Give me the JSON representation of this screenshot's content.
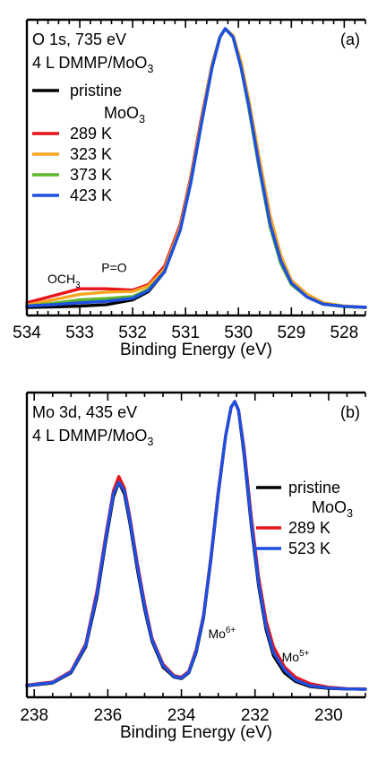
{
  "colors": {
    "pristine": "#000000",
    "k289": "#e8141c",
    "k323": "#f5a623",
    "k373": "#5cb82a",
    "k423": "#1e4fe0",
    "k523": "#1e4fe0"
  },
  "chart_data": [
    {
      "type": "line",
      "panel_id": "(a)",
      "title_line1": "O 1s, 735 eV",
      "title_line2": "4 L DMMP/MoO",
      "title_line2_sub": "3",
      "xlabel": "Binding Energy (eV)",
      "ylabel": "",
      "xlim": [
        534,
        527.6
      ],
      "ylim": [
        0,
        1
      ],
      "x_reversed": true,
      "xticks": [
        "534",
        "533",
        "532",
        "531",
        "530",
        "529",
        "528"
      ],
      "legend": [
        {
          "label": "pristine",
          "label2": "MoO",
          "label2_sub": "3",
          "color": "#000000"
        },
        {
          "label": "289 K",
          "color": "#e8141c"
        },
        {
          "label": "323 K",
          "color": "#f5a623"
        },
        {
          "label": "373 K",
          "color": "#5cb82a"
        },
        {
          "label": "423 K",
          "color": "#1e4fe0"
        }
      ],
      "annotations": [
        {
          "text": "OCH",
          "sub": "3",
          "x": 533.3,
          "y": 0.09
        },
        {
          "text": "P=O",
          "x": 532.35,
          "y": 0.13
        }
      ],
      "series": [
        {
          "name": "pristine",
          "color": "#000000",
          "x": [
            534,
            533.5,
            533,
            532.5,
            532,
            531.7,
            531.4,
            531.1,
            530.9,
            530.7,
            530.5,
            530.35,
            530.25,
            530.1,
            529.95,
            529.8,
            529.6,
            529.4,
            529.2,
            529,
            528.7,
            528.4,
            528,
            527.6
          ],
          "y": [
            0.003,
            0.005,
            0.008,
            0.013,
            0.03,
            0.06,
            0.13,
            0.29,
            0.46,
            0.67,
            0.87,
            0.97,
            1.0,
            0.97,
            0.87,
            0.72,
            0.5,
            0.3,
            0.17,
            0.09,
            0.04,
            0.015,
            0.006,
            0.003
          ]
        },
        {
          "name": "289 K",
          "color": "#e8141c",
          "x": [
            534,
            533.5,
            533,
            532.5,
            532,
            531.7,
            531.4,
            531.1,
            530.9,
            530.7,
            530.5,
            530.35,
            530.25,
            530.1,
            529.95,
            529.8,
            529.6,
            529.4,
            529.2,
            529,
            528.7,
            528.4,
            528,
            527.6
          ],
          "y": [
            0.02,
            0.045,
            0.07,
            0.07,
            0.065,
            0.085,
            0.15,
            0.3,
            0.47,
            0.68,
            0.87,
            0.97,
            1.0,
            0.97,
            0.87,
            0.72,
            0.5,
            0.3,
            0.17,
            0.09,
            0.04,
            0.016,
            0.007,
            0.004
          ]
        },
        {
          "name": "323 K",
          "color": "#f5a623",
          "x": [
            534,
            533.5,
            533,
            532.5,
            532,
            531.7,
            531.4,
            531.1,
            530.9,
            530.7,
            530.5,
            530.35,
            530.25,
            530.1,
            529.95,
            529.8,
            529.6,
            529.4,
            529.2,
            529,
            528.7,
            528.4,
            528,
            527.6
          ],
          "y": [
            0.012,
            0.03,
            0.05,
            0.058,
            0.06,
            0.08,
            0.14,
            0.29,
            0.46,
            0.67,
            0.87,
            0.97,
            1.0,
            0.975,
            0.88,
            0.74,
            0.53,
            0.33,
            0.19,
            0.1,
            0.05,
            0.02,
            0.008,
            0.004
          ]
        },
        {
          "name": "373 K",
          "color": "#5cb82a",
          "x": [
            534,
            533.5,
            533,
            532.5,
            532,
            531.7,
            531.4,
            531.1,
            530.9,
            530.7,
            530.5,
            530.35,
            530.25,
            530.1,
            529.95,
            529.8,
            529.6,
            529.4,
            529.2,
            529,
            528.7,
            528.4,
            528,
            527.6
          ],
          "y": [
            0.008,
            0.018,
            0.03,
            0.035,
            0.042,
            0.068,
            0.13,
            0.28,
            0.45,
            0.66,
            0.86,
            0.97,
            1.0,
            0.97,
            0.86,
            0.71,
            0.49,
            0.29,
            0.16,
            0.085,
            0.04,
            0.015,
            0.006,
            0.003
          ]
        },
        {
          "name": "423 K",
          "color": "#1e4fe0",
          "x": [
            534,
            533.5,
            533,
            532.5,
            532,
            531.7,
            531.4,
            531.1,
            530.9,
            530.7,
            530.5,
            530.35,
            530.25,
            530.1,
            529.95,
            529.8,
            529.6,
            529.4,
            529.2,
            529,
            528.7,
            528.4,
            528,
            527.6
          ],
          "y": [
            0.008,
            0.013,
            0.02,
            0.025,
            0.036,
            0.064,
            0.13,
            0.28,
            0.45,
            0.66,
            0.86,
            0.97,
            1.0,
            0.97,
            0.86,
            0.72,
            0.5,
            0.3,
            0.17,
            0.09,
            0.04,
            0.015,
            0.007,
            0.004
          ]
        }
      ]
    },
    {
      "type": "line",
      "panel_id": "(b)",
      "title_line1": "Mo 3d, 435 eV",
      "title_line2": "4 L DMMP/MoO",
      "title_line2_sub": "3",
      "xlabel": "Binding Energy (eV)",
      "ylabel": "",
      "xlim": [
        238.2,
        229
      ],
      "ylim": [
        0,
        1
      ],
      "x_reversed": true,
      "xticks": [
        "238",
        "236",
        "234",
        "232",
        "230"
      ],
      "legend": [
        {
          "label": "pristine",
          "label2": "MoO",
          "label2_sub": "3",
          "color": "#000000"
        },
        {
          "label": "289 K",
          "color": "#e8141c"
        },
        {
          "label": "523 K",
          "color": "#1e4fe0"
        }
      ],
      "annotations": [
        {
          "text": "Mo",
          "sup": "6+",
          "x": 232.9,
          "y": 0.18
        },
        {
          "text": "Mo",
          "sup": "5+",
          "x": 230.9,
          "y": 0.1
        }
      ],
      "series": [
        {
          "name": "pristine",
          "color": "#000000",
          "x": [
            238.2,
            237.5,
            237,
            236.6,
            236.3,
            236.05,
            235.85,
            235.7,
            235.55,
            235.4,
            235.2,
            235,
            234.8,
            234.5,
            234.2,
            234,
            233.8,
            233.6,
            233.4,
            233.2,
            233,
            232.8,
            232.65,
            232.55,
            232.45,
            232.3,
            232.1,
            231.9,
            231.7,
            231.5,
            231.2,
            230.9,
            230.5,
            230,
            229.5,
            229
          ],
          "y": [
            0.015,
            0.025,
            0.06,
            0.15,
            0.32,
            0.52,
            0.67,
            0.72,
            0.68,
            0.58,
            0.42,
            0.28,
            0.17,
            0.08,
            0.045,
            0.04,
            0.06,
            0.13,
            0.25,
            0.45,
            0.68,
            0.88,
            0.98,
            1.0,
            0.97,
            0.82,
            0.57,
            0.36,
            0.21,
            0.12,
            0.06,
            0.03,
            0.012,
            0.006,
            0.004,
            0.003
          ]
        },
        {
          "name": "289 K",
          "color": "#e8141c",
          "x": [
            238.2,
            237.5,
            237,
            236.6,
            236.3,
            236.05,
            235.85,
            235.7,
            235.55,
            235.4,
            235.2,
            235,
            234.8,
            234.5,
            234.2,
            234,
            233.8,
            233.6,
            233.4,
            233.2,
            233,
            232.8,
            232.65,
            232.55,
            232.45,
            232.3,
            232.1,
            231.9,
            231.7,
            231.5,
            231.2,
            230.9,
            230.5,
            230,
            229.5,
            229
          ],
          "y": [
            0.017,
            0.028,
            0.065,
            0.16,
            0.34,
            0.54,
            0.69,
            0.74,
            0.7,
            0.6,
            0.44,
            0.3,
            0.18,
            0.09,
            0.05,
            0.045,
            0.065,
            0.14,
            0.26,
            0.46,
            0.69,
            0.88,
            0.98,
            1.0,
            0.97,
            0.84,
            0.6,
            0.39,
            0.24,
            0.15,
            0.08,
            0.045,
            0.022,
            0.01,
            0.005,
            0.004
          ]
        },
        {
          "name": "523 K",
          "color": "#1e4fe0",
          "x": [
            238.2,
            237.5,
            237,
            236.6,
            236.3,
            236.05,
            235.85,
            235.7,
            235.55,
            235.4,
            235.2,
            235,
            234.8,
            234.5,
            234.2,
            234,
            233.8,
            233.6,
            233.4,
            233.2,
            233,
            232.8,
            232.65,
            232.55,
            232.45,
            232.3,
            232.1,
            231.9,
            231.7,
            231.5,
            231.2,
            230.9,
            230.5,
            230,
            229.5,
            229
          ],
          "y": [
            0.016,
            0.026,
            0.062,
            0.155,
            0.33,
            0.53,
            0.68,
            0.72,
            0.69,
            0.59,
            0.43,
            0.29,
            0.175,
            0.085,
            0.047,
            0.042,
            0.062,
            0.135,
            0.255,
            0.455,
            0.685,
            0.88,
            0.98,
            1.0,
            0.97,
            0.83,
            0.58,
            0.37,
            0.22,
            0.13,
            0.07,
            0.035,
            0.015,
            0.007,
            0.004,
            0.003
          ]
        }
      ]
    }
  ]
}
